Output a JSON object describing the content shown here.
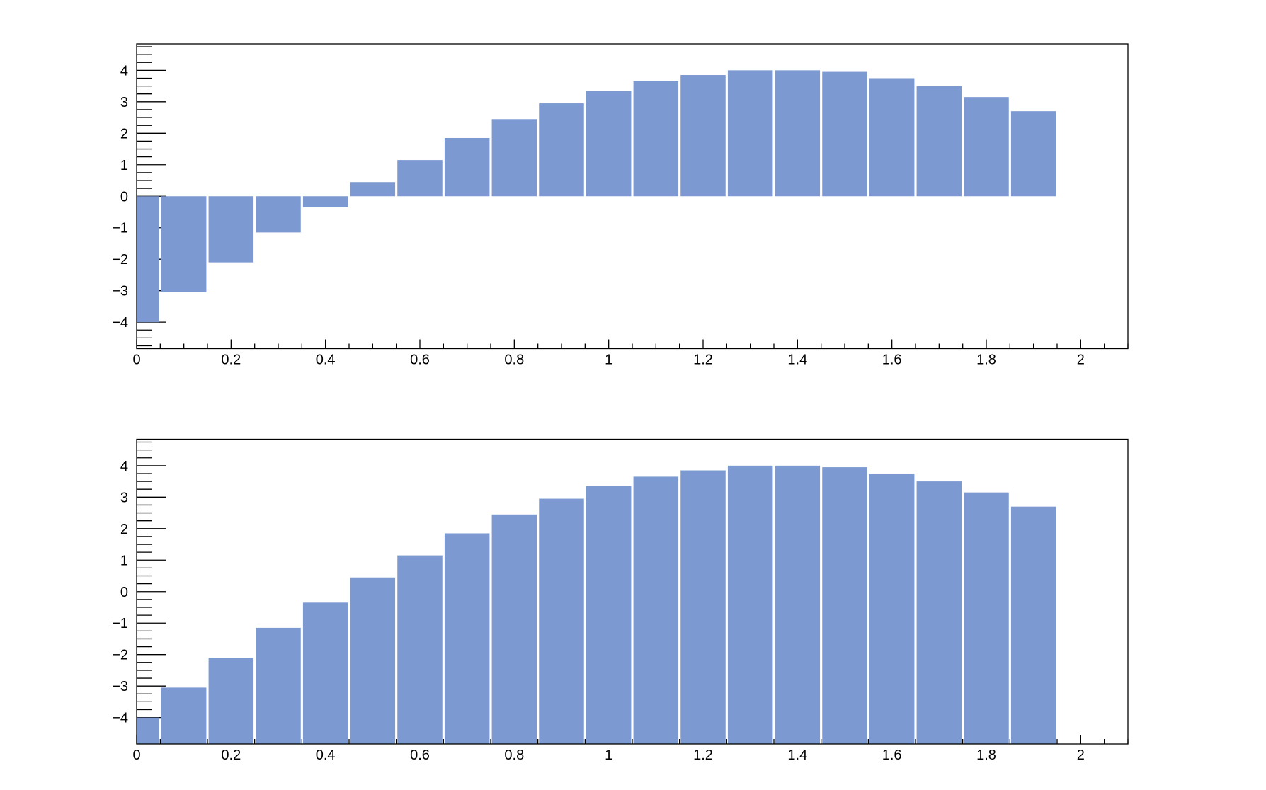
{
  "figure": {
    "background_color": "#ffffff",
    "frame_color": "#000000",
    "bar_fill_color": "#7c99d1",
    "tick_label_color": "#000000"
  },
  "chart_data": [
    {
      "name": "top-histogram",
      "type": "bar",
      "title": "",
      "bar_baseline": "zero",
      "bin_width": 0.1,
      "bin_centers": [
        0.0,
        0.1,
        0.2,
        0.3,
        0.4,
        0.5,
        0.6,
        0.7,
        0.8,
        0.9,
        1.0,
        1.1,
        1.2,
        1.3,
        1.4,
        1.5,
        1.6,
        1.7,
        1.8,
        1.9
      ],
      "values": [
        -4.0,
        -3.05,
        -2.1,
        -1.15,
        -0.35,
        0.45,
        1.15,
        1.85,
        2.45,
        2.95,
        3.35,
        3.65,
        3.85,
        4.0,
        4.0,
        3.95,
        3.75,
        3.5,
        3.15,
        2.7
      ],
      "xlim": [
        0,
        2.1
      ],
      "ylim": [
        -4.84,
        4.84
      ],
      "x_major_ticks": [
        0,
        0.2,
        0.4,
        0.6,
        0.8,
        1.0,
        1.2,
        1.4,
        1.6,
        1.8,
        2.0
      ],
      "x_tick_labels": [
        "0",
        "0.2",
        "0.4",
        "0.6",
        "0.8",
        "1",
        "1.2",
        "1.4",
        "1.6",
        "1.8",
        "2"
      ],
      "x_minor_tick_step": 0.05,
      "y_major_ticks": [
        -4,
        -3,
        -2,
        -1,
        0,
        1,
        2,
        3,
        4
      ],
      "y_tick_labels": [
        "−4",
        "−3",
        "−2",
        "−1",
        "0",
        "1",
        "2",
        "3",
        "4"
      ],
      "y_minor_tick_step": 0.25,
      "grid": false,
      "legend": null
    },
    {
      "name": "bottom-histogram",
      "type": "bar",
      "title": "",
      "bar_baseline": "axis-minimum",
      "bin_width": 0.1,
      "bin_centers": [
        0.0,
        0.1,
        0.2,
        0.3,
        0.4,
        0.5,
        0.6,
        0.7,
        0.8,
        0.9,
        1.0,
        1.1,
        1.2,
        1.3,
        1.4,
        1.5,
        1.6,
        1.7,
        1.8,
        1.9
      ],
      "values": [
        -4.0,
        -3.05,
        -2.1,
        -1.15,
        -0.35,
        0.45,
        1.15,
        1.85,
        2.45,
        2.95,
        3.35,
        3.65,
        3.85,
        4.0,
        4.0,
        3.95,
        3.75,
        3.5,
        3.15,
        2.7
      ],
      "xlim": [
        0,
        2.1
      ],
      "ylim": [
        -4.84,
        4.84
      ],
      "x_major_ticks": [
        0,
        0.2,
        0.4,
        0.6,
        0.8,
        1.0,
        1.2,
        1.4,
        1.6,
        1.8,
        2.0
      ],
      "x_tick_labels": [
        "0",
        "0.2",
        "0.4",
        "0.6",
        "0.8",
        "1",
        "1.2",
        "1.4",
        "1.6",
        "1.8",
        "2"
      ],
      "x_minor_tick_step": 0.05,
      "y_major_ticks": [
        -4,
        -3,
        -2,
        -1,
        0,
        1,
        2,
        3,
        4
      ],
      "y_tick_labels": [
        "−4",
        "−3",
        "−2",
        "−1",
        "0",
        "1",
        "2",
        "3",
        "4"
      ],
      "y_minor_tick_step": 0.25,
      "grid": false,
      "legend": null
    }
  ]
}
